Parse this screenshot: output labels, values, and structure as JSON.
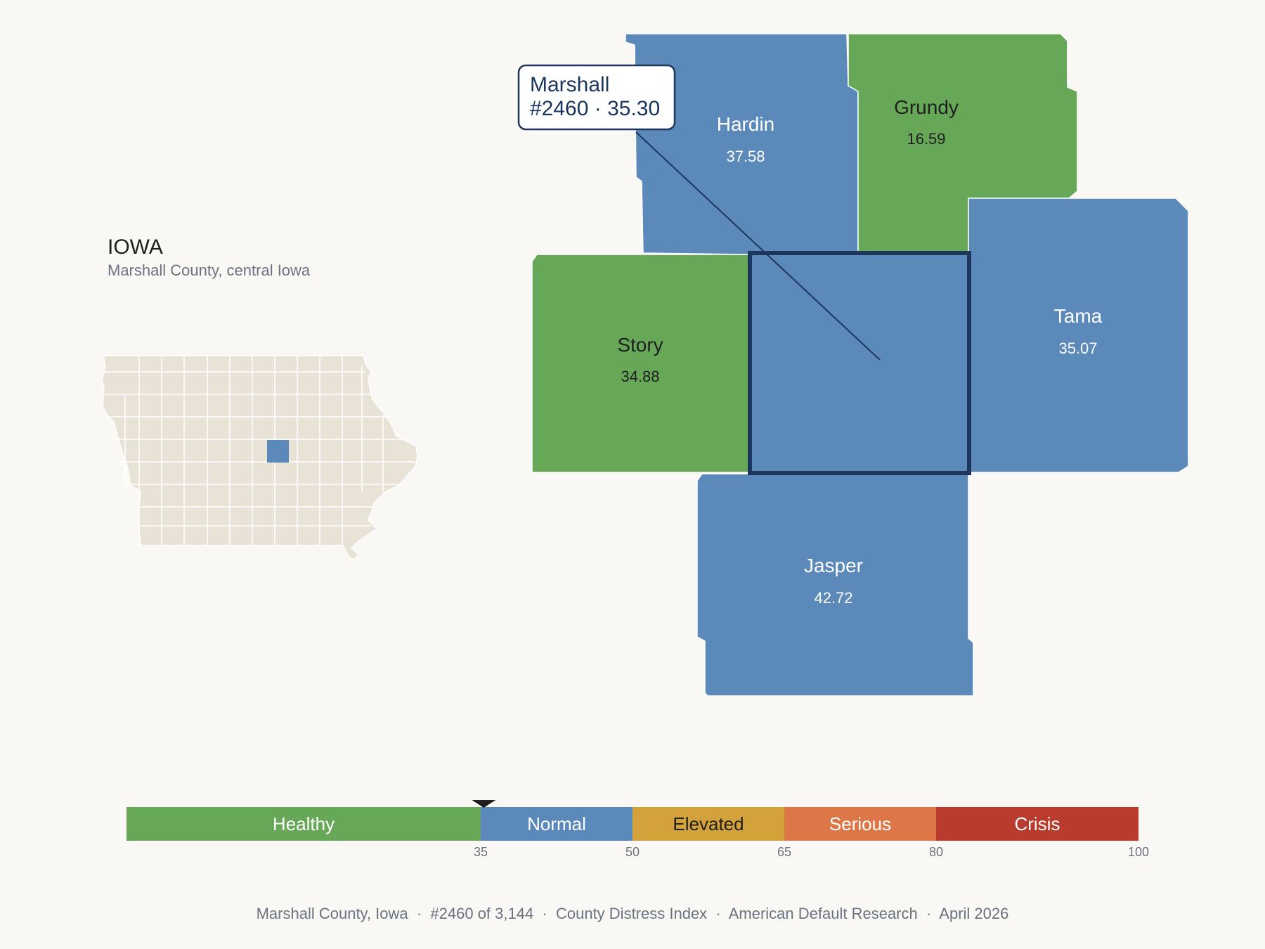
{
  "state": {
    "title": "IOWA",
    "subtitle": "Marshall County, central Iowa"
  },
  "callout": {
    "line1": "Marshall",
    "line2": "#2460 · 35.30"
  },
  "counties": {
    "hardin": {
      "name": "Hardin",
      "value": "37.58",
      "category": "Normal"
    },
    "grundy": {
      "name": "Grundy",
      "value": "16.59",
      "category": "Healthy"
    },
    "story": {
      "name": "Story",
      "value": "34.88",
      "category": "Healthy"
    },
    "tama": {
      "name": "Tama",
      "value": "35.07",
      "category": "Normal"
    },
    "jasper": {
      "name": "Jasper",
      "value": "42.72",
      "category": "Normal"
    },
    "marshall": {
      "name": "Marshall",
      "value": "35.30",
      "category": "Normal"
    }
  },
  "colors": {
    "healthy": "#67a858",
    "normal": "#5b89ba",
    "elevated": "#d4a23a",
    "serious": "#dd7748",
    "crisis": "#b93b2e",
    "highlight_outline": "#1c365c",
    "inset_fill": "#e8e2d7"
  },
  "scale": {
    "min": 0,
    "max": 100,
    "marker_value": 35.3,
    "bands": [
      {
        "label": "Healthy",
        "from": 0,
        "to": 35
      },
      {
        "label": "Normal",
        "from": 35,
        "to": 50
      },
      {
        "label": "Elevated",
        "from": 50,
        "to": 65
      },
      {
        "label": "Serious",
        "from": 65,
        "to": 80
      },
      {
        "label": "Crisis",
        "from": 80,
        "to": 100
      }
    ],
    "ticks": [
      "35",
      "50",
      "65",
      "80",
      "100"
    ]
  },
  "footer": {
    "text": "Marshall County, Iowa  ·  #2460 of 3,144  ·  County Distress Index  ·  American Default Research  ·  April 2026"
  }
}
